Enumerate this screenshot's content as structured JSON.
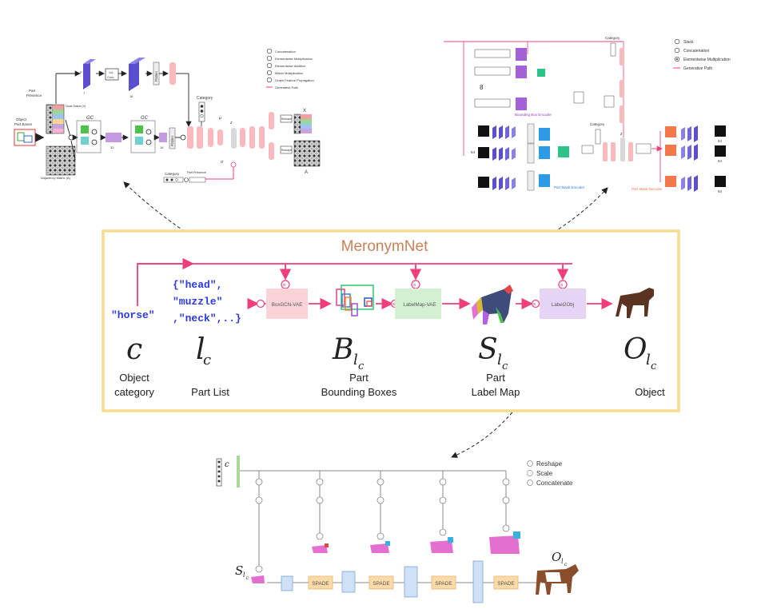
{
  "main": {
    "title": "MeronymNet",
    "class_input": "\"horse\"",
    "part_list": [
      "{\"head\",",
      "\"muzzle\"",
      ",\"neck\",..}"
    ],
    "modules": [
      "BoxGCN-VAE",
      "LabelMap-VAE",
      "Label2Obj"
    ],
    "symbols": [
      "c",
      "l",
      "B",
      "S",
      "O"
    ],
    "symbol_sub": "l",
    "symbol_subsub": "c",
    "captions": [
      [
        "Object",
        "category"
      ],
      [
        "Part List"
      ],
      [
        "Part",
        "Bounding Boxes"
      ],
      [
        "Part",
        "Label Map"
      ],
      [
        "Object"
      ]
    ]
  },
  "boxgcn": {
    "input_label": [
      "Object",
      "Part Boxes"
    ],
    "part_presence": [
      "Part",
      "Presence"
    ],
    "node_matrix": "Node Matrix (X)",
    "adjacency": "Adjacency Matrix (A)",
    "gc1": "GC",
    "gc2": "GC",
    "conv": [
      "1x1",
      "Conv"
    ],
    "flatten": "Flatten",
    "category": "Category",
    "category_bottom": "Category",
    "part_presence_bottom": "Part Presence",
    "z": "z",
    "mu": "μ",
    "sigma": "σ",
    "reshape": "Reshape",
    "x_label": "X",
    "a_label": "A",
    "dims": [
      "P",
      "P",
      "7",
      "1",
      "16",
      "1",
      "128",
      "32",
      "16",
      "64",
      "64",
      "64",
      "128",
      "64",
      "32",
      "16"
    ],
    "legend": [
      "Concatenation",
      "Elementwise Multiplication",
      "Elementwise Addition",
      "Matrix Multiplication",
      "Graph Feature Propagation",
      "Generative Path"
    ],
    "legend_icons": [
      "C",
      "×",
      "+",
      "⊗",
      "⊙",
      "→"
    ]
  },
  "labelmap": {
    "bb_encoder": "Bounding Box Encoder",
    "pm_encoder": "Part Mask Encoder",
    "pm_decoder": "Part Mask Decoder",
    "category": "Category",
    "legend": [
      "Stack",
      "Concatenation",
      "Elementwise Multiplication",
      "Generative Path"
    ],
    "legend_icons": [
      "S",
      "C",
      "•",
      "→"
    ],
    "dim64": "64",
    "flatten": "Flatten",
    "z": "z",
    "mu": "μ",
    "sigma": "σ",
    "misc": [
      "1x1 conv",
      "max pooling",
      "Upsample",
      "64",
      "8"
    ]
  },
  "label2obj": {
    "legend": [
      "Reshape",
      "Scale",
      "Concatenate"
    ],
    "legend_icons": [
      "R",
      "S",
      "C"
    ],
    "c_label": "c",
    "spade": [
      "SPADE",
      "SPADE",
      "SPADE",
      "SPADE"
    ],
    "input_symbol": "S",
    "output_symbol": "O",
    "sub": "l",
    "subsub": "c"
  },
  "colors": {
    "pink": "#ef3f7a",
    "frame": "#f6dc8e",
    "title": "#c8825a",
    "blue_text": "#2b39e0",
    "vae1": "#f9d3d6",
    "vae2": "#d3f0d0",
    "vae3": "#e6d4f4",
    "spade": "#fcdba8"
  }
}
